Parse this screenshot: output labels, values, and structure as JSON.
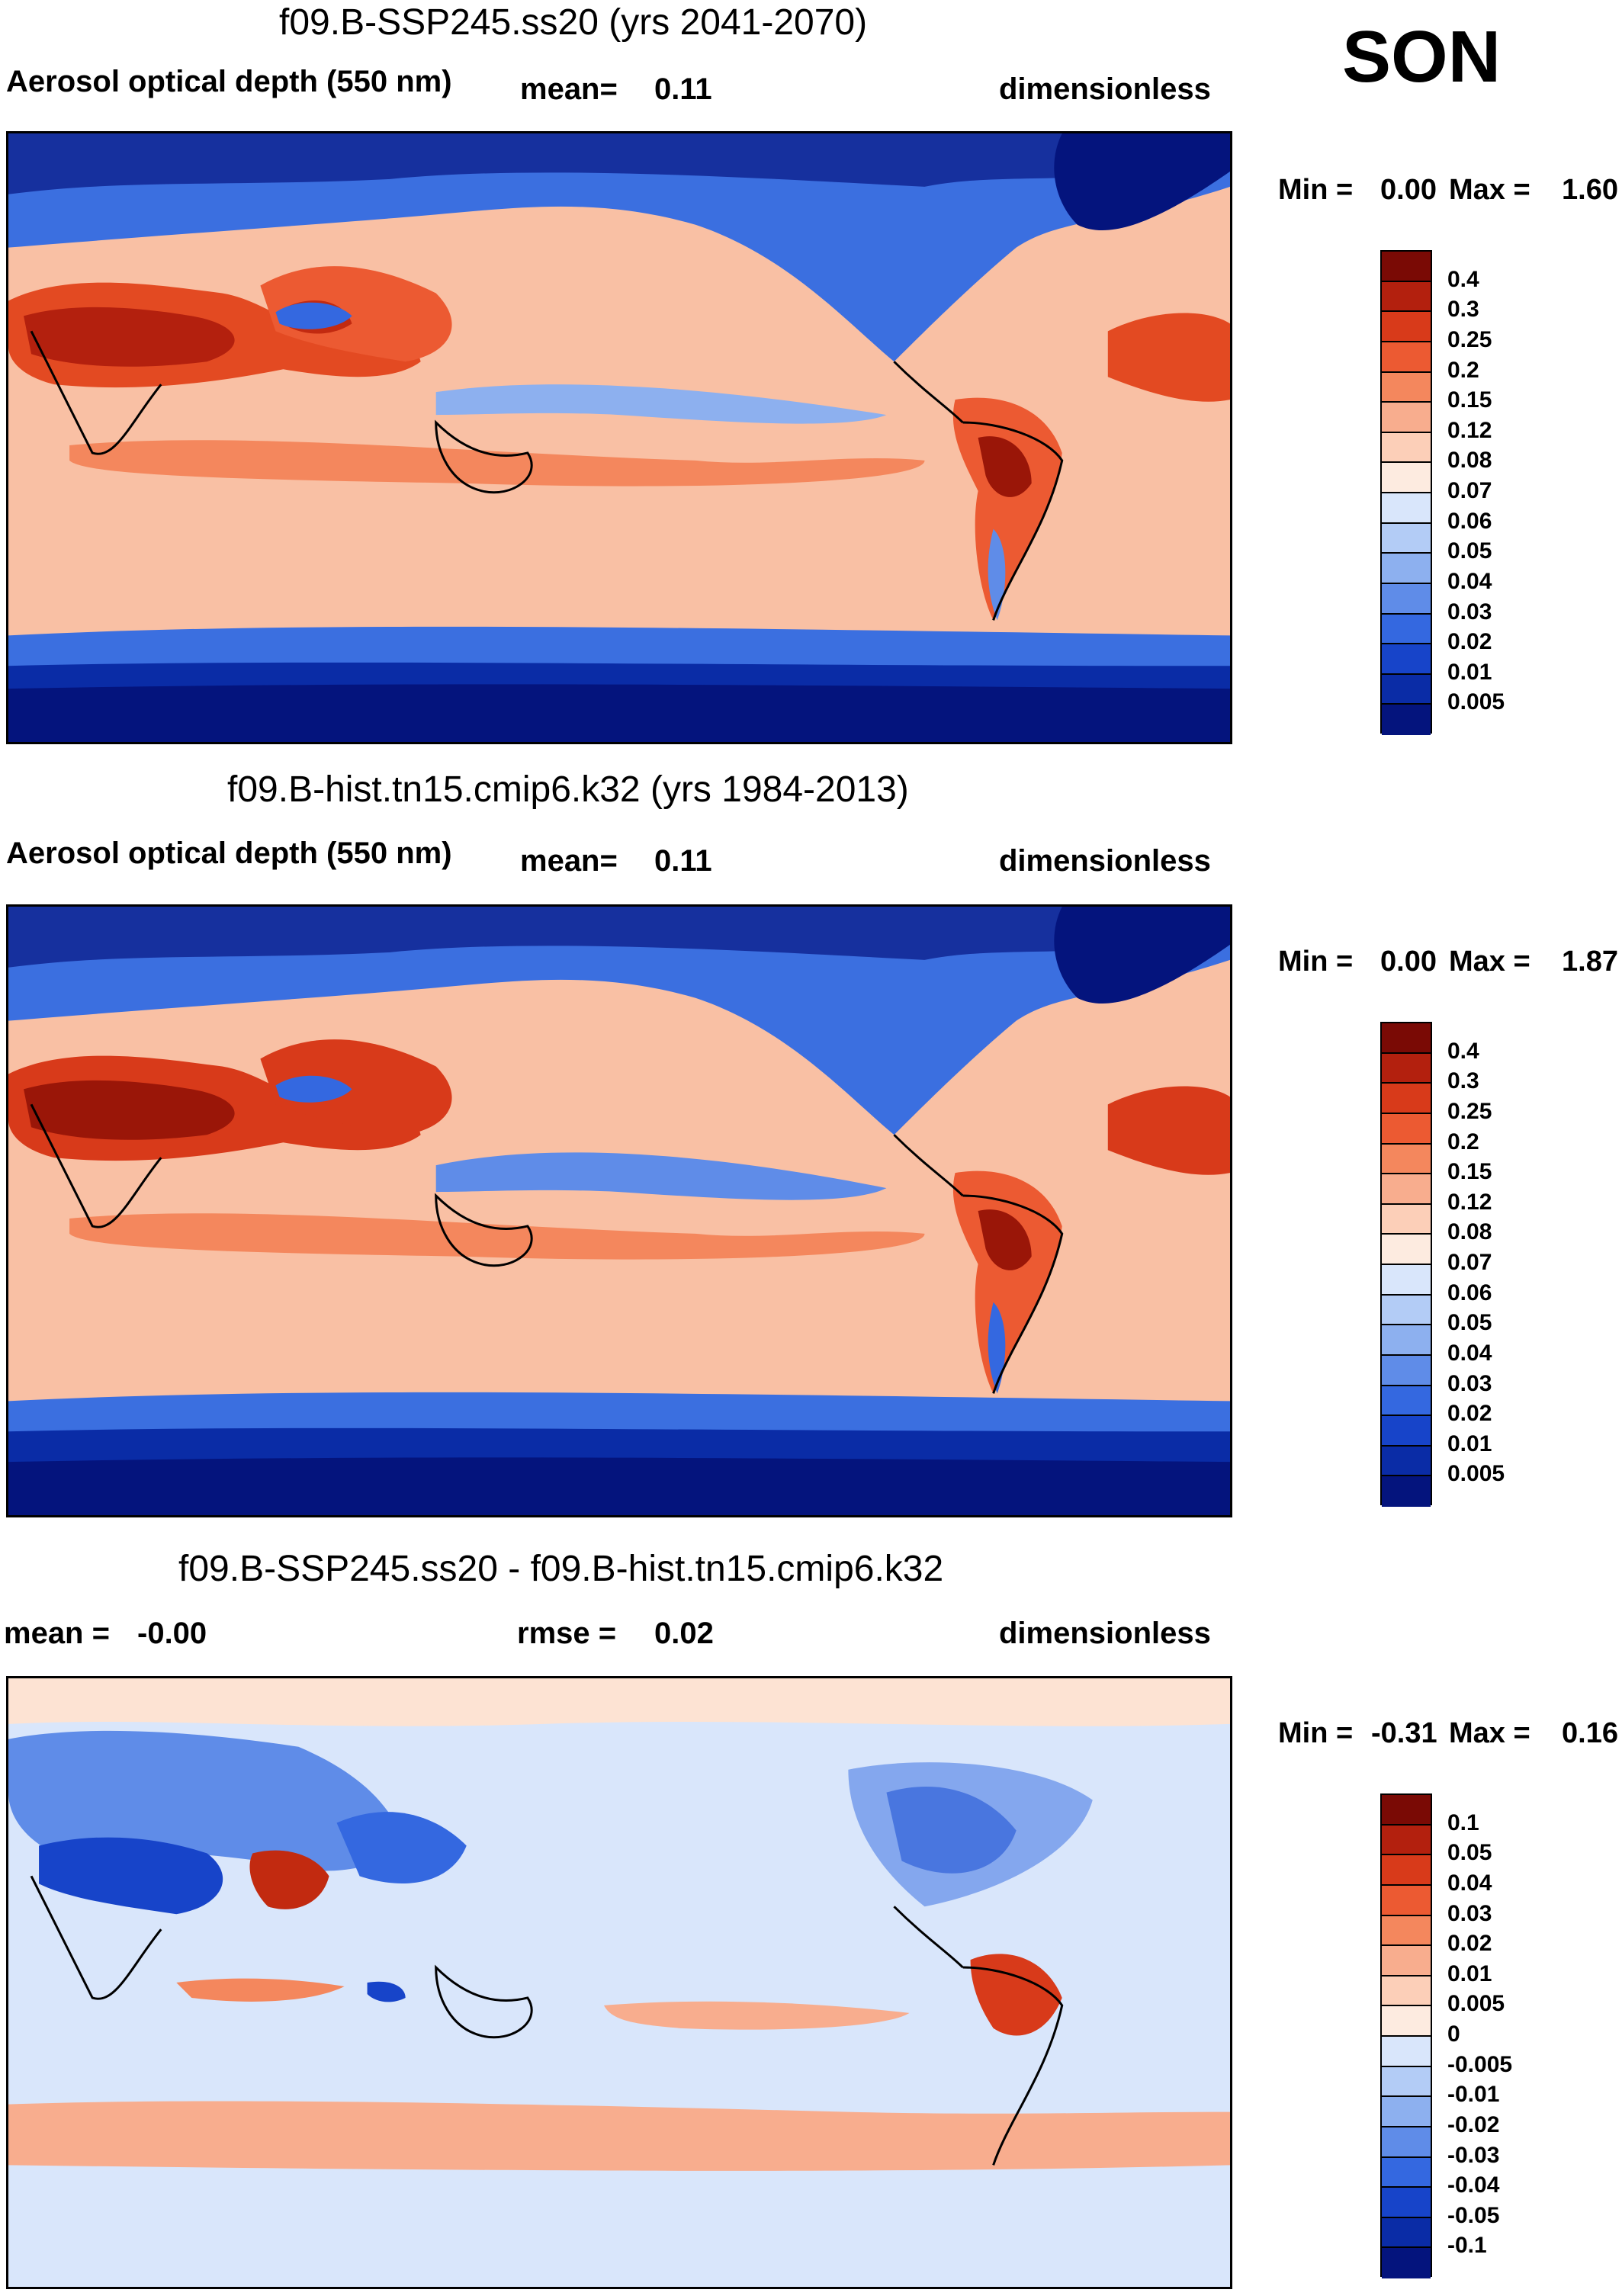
{
  "season": "SON",
  "panels": [
    {
      "title": "f09.B-SSP245.ss20 (yrs 2041-2070)",
      "left_label": "Aerosol optical depth (550 nm)",
      "center_label": "mean=",
      "center_value": "0.11",
      "right_label": "dimensionless",
      "min_label": "Min =",
      "min_value": "0.00",
      "max_label": "Max =",
      "max_value": "1.60",
      "ticks": [
        "0.4",
        "0.3",
        "0.25",
        "0.2",
        "0.15",
        "0.12",
        "0.08",
        "0.07",
        "0.06",
        "0.05",
        "0.04",
        "0.03",
        "0.02",
        "0.01",
        "0.005"
      ]
    },
    {
      "title": "f09.B-hist.tn15.cmip6.k32 (yrs 1984-2013)",
      "left_label": "Aerosol optical depth (550 nm)",
      "center_label": "mean=",
      "center_value": "0.11",
      "right_label": "dimensionless",
      "min_label": "Min =",
      "min_value": "0.00",
      "max_label": "Max =",
      "max_value": "1.87",
      "ticks": [
        "0.4",
        "0.3",
        "0.25",
        "0.2",
        "0.15",
        "0.12",
        "0.08",
        "0.07",
        "0.06",
        "0.05",
        "0.04",
        "0.03",
        "0.02",
        "0.01",
        "0.005"
      ]
    },
    {
      "title": "f09.B-SSP245.ss20 - f09.B-hist.tn15.cmip6.k32",
      "left_label": "mean =",
      "left_value": "-0.00",
      "center_label": "rmse =",
      "center_value": "0.02",
      "right_label": "dimensionless",
      "min_label": "Min =",
      "min_value": "-0.31",
      "max_label": "Max =",
      "max_value": "0.16",
      "ticks": [
        "0.1",
        "0.05",
        "0.04",
        "0.03",
        "0.02",
        "0.01",
        "0.005",
        "0",
        "-0.005",
        "-0.01",
        "-0.02",
        "-0.03",
        "-0.04",
        "-0.05",
        "-0.1"
      ]
    }
  ],
  "colors": {
    "abs_scale": [
      "#7a0a05",
      "#b3200e",
      "#d83a1a",
      "#ec5a32",
      "#f4875d",
      "#f8ad8e",
      "#fccfb8",
      "#fdebe0",
      "#d9e6fb",
      "#b3ccf6",
      "#8db0ef",
      "#5f8ce8",
      "#3468e0",
      "#1744c9",
      "#0a2ca6",
      "#04147d"
    ],
    "diff_scale": [
      "#7a0a05",
      "#b3200e",
      "#d83a1a",
      "#ec5a32",
      "#f4875d",
      "#f8ad8e",
      "#fccfb8",
      "#fdebe0",
      "#d9e6fb",
      "#b3ccf6",
      "#8db0ef",
      "#5f8ce8",
      "#3468e0",
      "#1744c9",
      "#0a2ca6",
      "#04147d"
    ]
  }
}
